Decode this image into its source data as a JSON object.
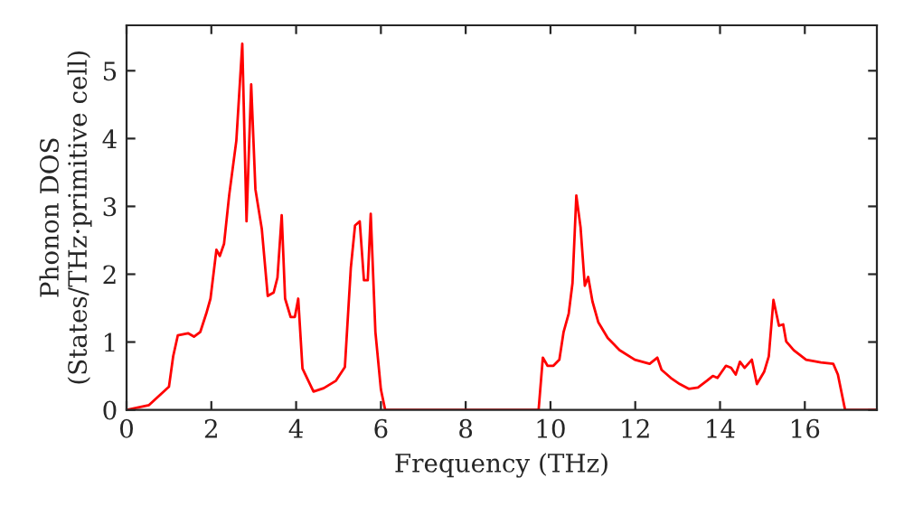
{
  "chart_data": {
    "type": "line",
    "xlabel": "Frequency (THz)",
    "ylabel": "Phonon DOS\n(States/THz·primitive cell)",
    "x": [
      0,
      0.53,
      1.0,
      1.1,
      1.21,
      1.45,
      1.59,
      1.74,
      1.88,
      1.98,
      2.12,
      2.2,
      2.3,
      2.42,
      2.59,
      2.73,
      2.83,
      2.94,
      3.04,
      3.19,
      3.33,
      3.47,
      3.56,
      3.66,
      3.74,
      3.87,
      3.97,
      4.05,
      4.15,
      4.41,
      4.65,
      4.94,
      5.15,
      5.29,
      5.39,
      5.5,
      5.6,
      5.69,
      5.76,
      5.87,
      6.0,
      6.1,
      9.72,
      9.82,
      9.93,
      10.07,
      10.21,
      10.31,
      10.43,
      10.52,
      10.61,
      10.71,
      10.81,
      10.89,
      10.99,
      11.13,
      11.35,
      11.63,
      11.99,
      12.34,
      12.52,
      12.62,
      12.84,
      13.05,
      13.26,
      13.48,
      13.69,
      13.83,
      13.94,
      14.14,
      14.26,
      14.37,
      14.47,
      14.58,
      14.75,
      14.87,
      15.04,
      15.15,
      15.26,
      15.39,
      15.49,
      15.56,
      15.74,
      16.03,
      16.38,
      16.67,
      16.78,
      16.95,
      17.7
    ],
    "series": [
      {
        "color": "#ff0000",
        "values": [
          0,
          0.07,
          0.34,
          0.79,
          1.1,
          1.13,
          1.08,
          1.15,
          1.42,
          1.64,
          2.36,
          2.27,
          2.45,
          3.16,
          3.97,
          5.4,
          2.78,
          4.8,
          3.25,
          2.67,
          1.68,
          1.73,
          1.95,
          2.87,
          1.64,
          1.37,
          1.37,
          1.64,
          0.61,
          0.27,
          0.32,
          0.43,
          0.63,
          2.09,
          2.72,
          2.78,
          1.91,
          1.91,
          2.89,
          1.15,
          0.3,
          0,
          0,
          0.77,
          0.65,
          0.65,
          0.74,
          1.15,
          1.42,
          1.87,
          3.16,
          2.69,
          1.83,
          1.96,
          1.6,
          1.29,
          1.06,
          0.88,
          0.74,
          0.68,
          0.77,
          0.59,
          0.47,
          0.38,
          0.31,
          0.33,
          0.43,
          0.5,
          0.47,
          0.65,
          0.62,
          0.52,
          0.71,
          0.62,
          0.74,
          0.38,
          0.56,
          0.79,
          1.62,
          1.24,
          1.26,
          1.01,
          0.88,
          0.74,
          0.7,
          0.68,
          0.52,
          0,
          0
        ]
      }
    ],
    "xlim": [
      0,
      17.7
    ],
    "ylim": [
      0,
      5.67
    ],
    "xticks": [
      0,
      2,
      4,
      6,
      8,
      10,
      12,
      14,
      16
    ],
    "yticks": [
      0,
      1,
      2,
      3,
      4,
      5
    ],
    "line_style": "solid"
  }
}
